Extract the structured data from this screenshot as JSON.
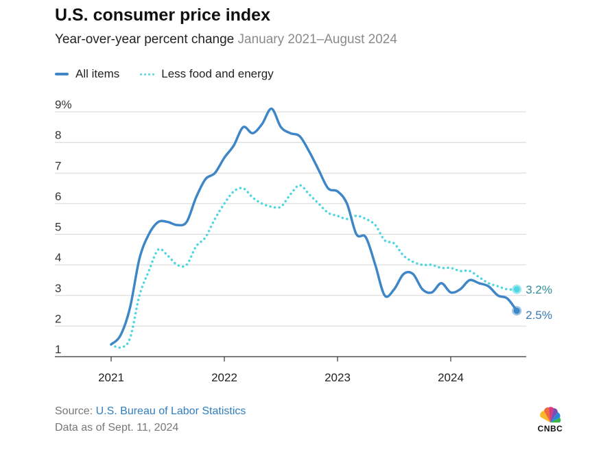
{
  "title": "U.S. consumer price index",
  "subtitle": {
    "main": "Year-over-year percent change",
    "range": "January 2021–August 2024"
  },
  "legend": {
    "all_items": "All items",
    "core": "Less food and energy"
  },
  "colors": {
    "all_items": "#3f86c7",
    "core": "#4fd6e2",
    "grid": "#d6d6d6",
    "axis": "#333333"
  },
  "footer": {
    "source_prefix": "Source: ",
    "source_link": "U.S. Bureau of Labor Statistics",
    "as_of": "Data as of Sept. 11, 2024"
  },
  "brand": {
    "name": "CNBC"
  },
  "chart_data": {
    "type": "line",
    "title": "U.S. consumer price index",
    "xlabel": "",
    "ylabel": "",
    "x_ticks": [
      "2021",
      "2022",
      "2023",
      "2024"
    ],
    "y_ticks": [
      "1",
      "2",
      "3",
      "4",
      "5",
      "6",
      "7",
      "8",
      "9%"
    ],
    "ylim": [
      1,
      9
    ],
    "grid": true,
    "x_start": "2021-01",
    "x_end": "2024-08",
    "series": [
      {
        "name": "All items",
        "values": [
          1.4,
          1.7,
          2.6,
          4.2,
          5.0,
          5.4,
          5.4,
          5.3,
          5.4,
          6.2,
          6.8,
          7.0,
          7.5,
          7.9,
          8.5,
          8.3,
          8.6,
          9.1,
          8.5,
          8.3,
          8.2,
          7.7,
          7.1,
          6.5,
          6.4,
          6.0,
          5.0,
          4.9,
          4.0,
          3.0,
          3.2,
          3.7,
          3.7,
          3.2,
          3.1,
          3.4,
          3.1,
          3.2,
          3.5,
          3.4,
          3.3,
          3.0,
          2.9,
          2.5
        ]
      },
      {
        "name": "Less food and energy",
        "values": [
          1.4,
          1.3,
          1.6,
          3.0,
          3.8,
          4.5,
          4.3,
          4.0,
          4.0,
          4.6,
          4.9,
          5.5,
          6.0,
          6.4,
          6.5,
          6.2,
          6.0,
          5.9,
          5.9,
          6.3,
          6.6,
          6.3,
          6.0,
          5.7,
          5.6,
          5.5,
          5.6,
          5.5,
          5.3,
          4.8,
          4.7,
          4.3,
          4.1,
          4.0,
          4.0,
          3.9,
          3.9,
          3.8,
          3.8,
          3.6,
          3.4,
          3.3,
          3.2,
          3.2
        ]
      }
    ],
    "end_labels": [
      {
        "series": "Less food and energy",
        "text": "3.2%"
      },
      {
        "series": "All items",
        "text": "2.5%"
      }
    ]
  }
}
